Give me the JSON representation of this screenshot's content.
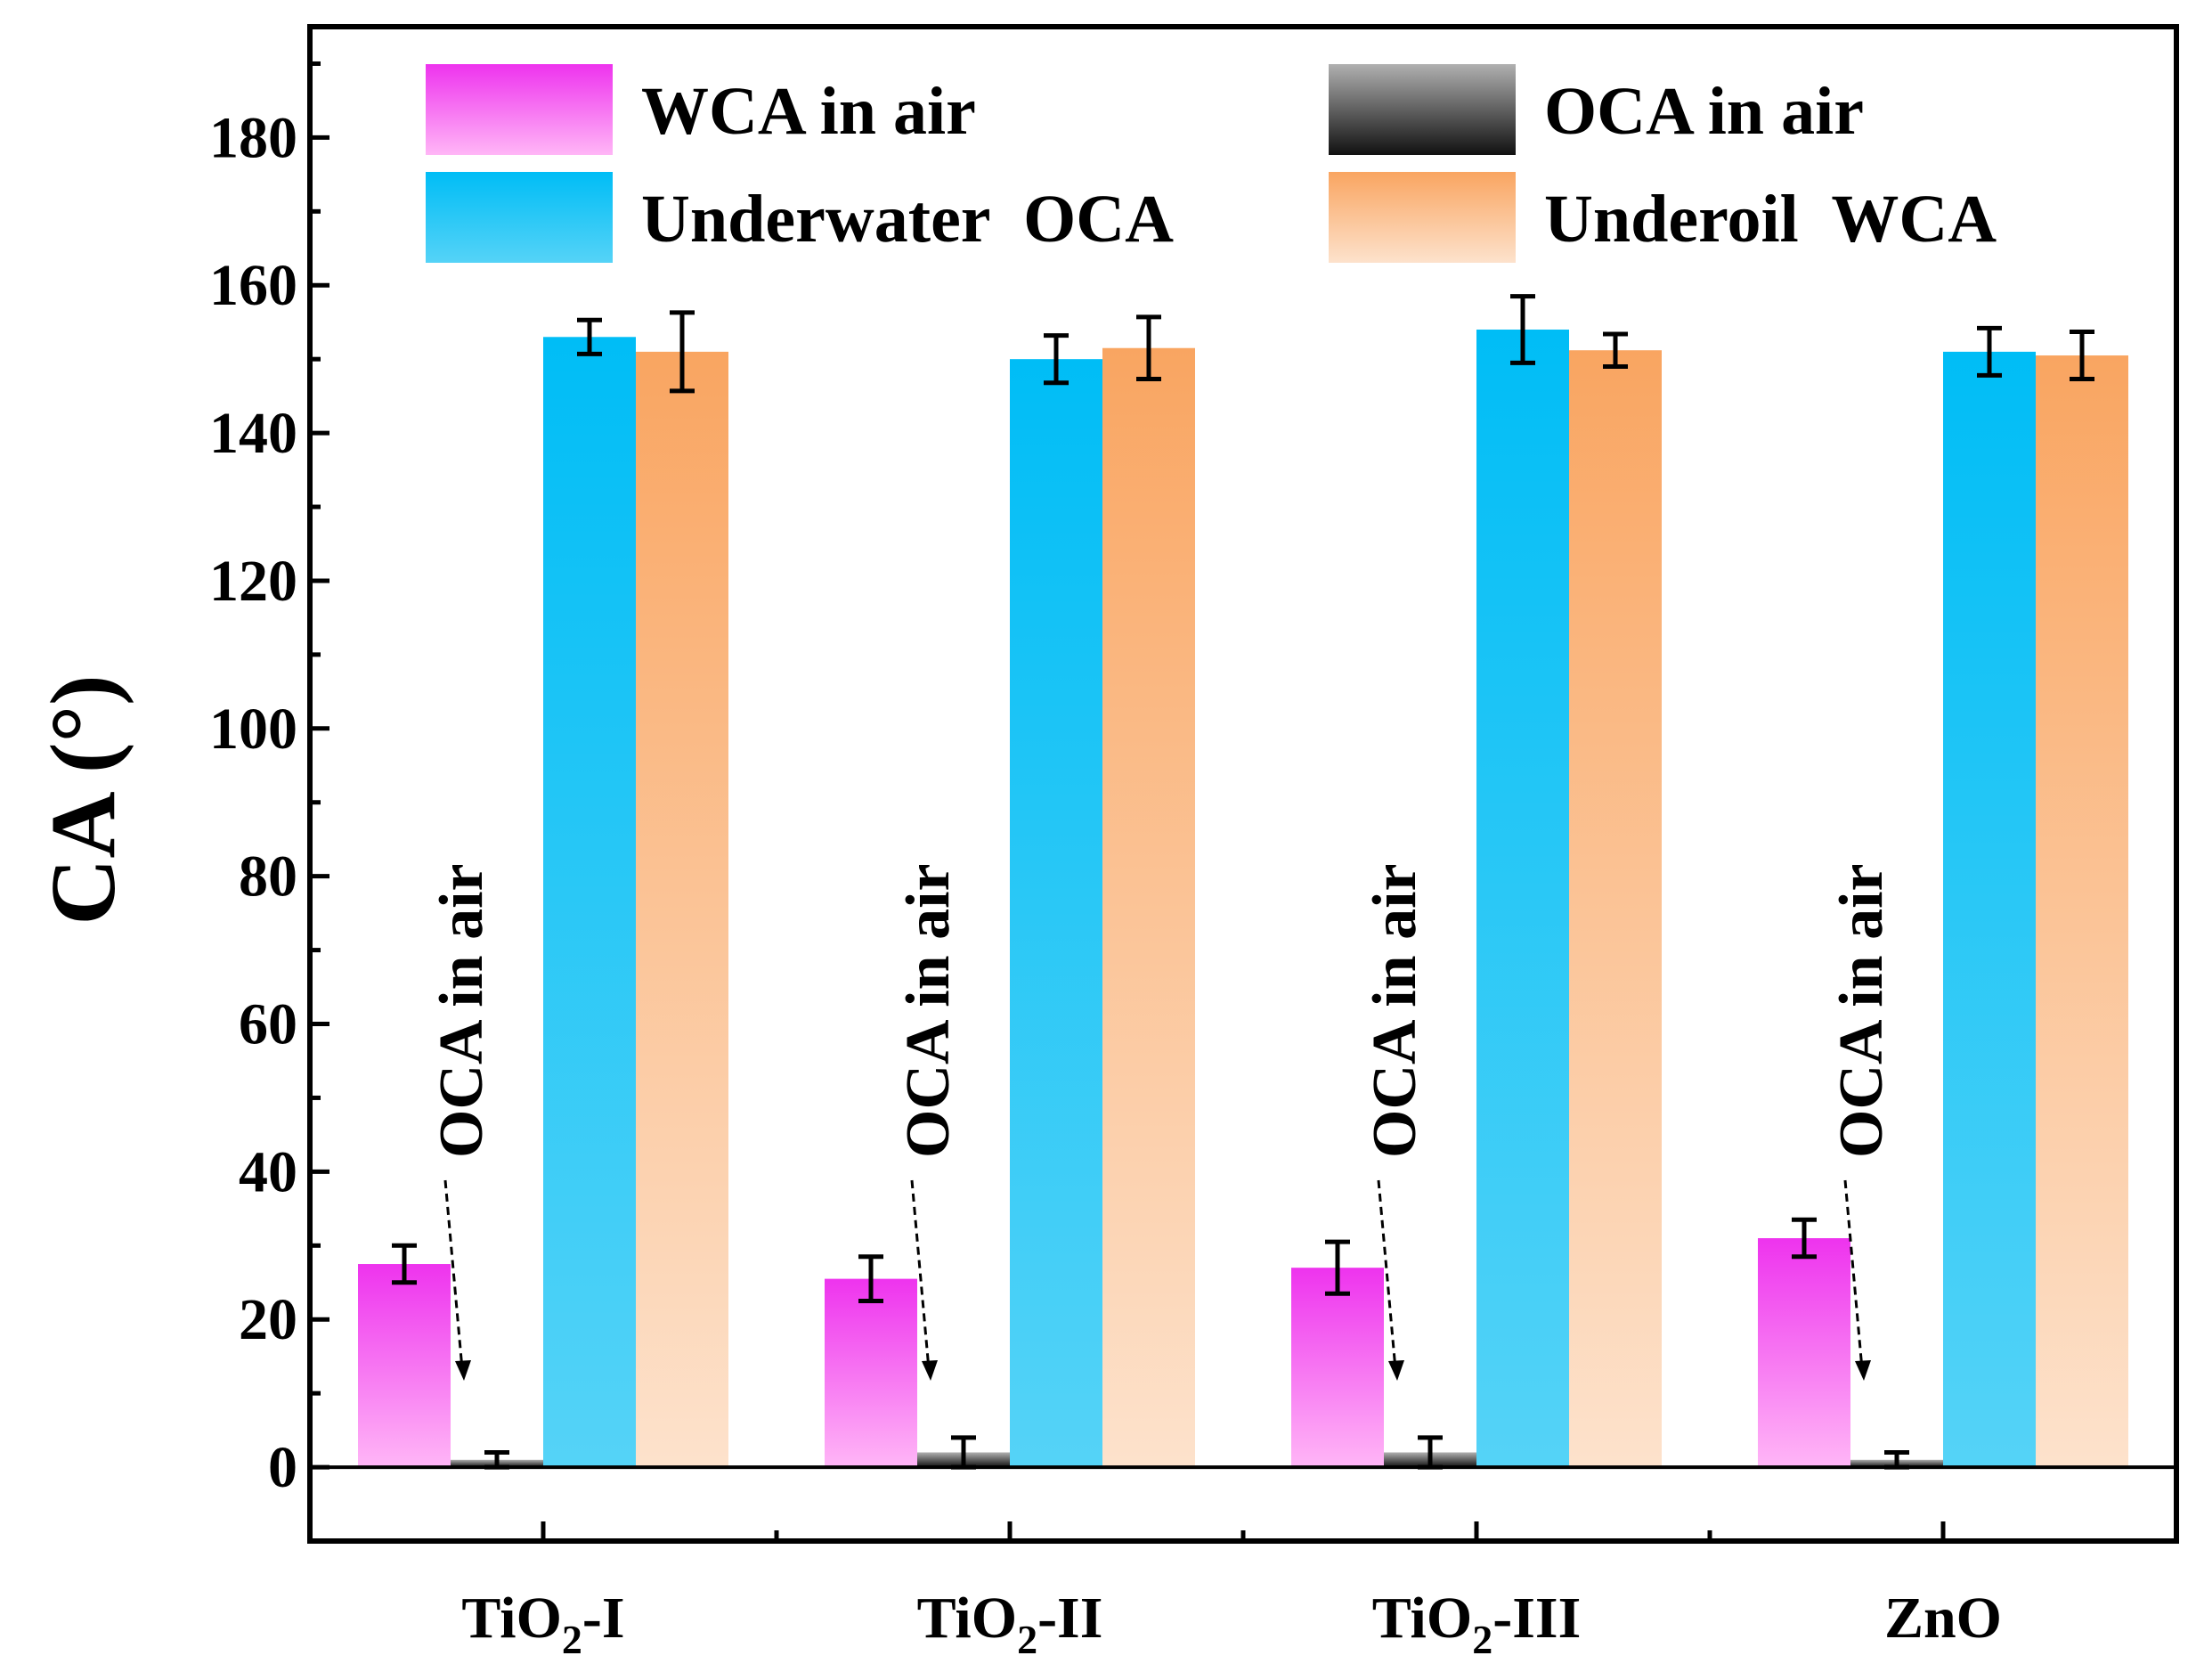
{
  "chart_data": {
    "type": "bar",
    "title": "",
    "xlabel": "",
    "ylabel": "CA (°)",
    "ylim": [
      -10,
      195
    ],
    "yticks": [
      0,
      20,
      40,
      60,
      80,
      100,
      120,
      140,
      160,
      180
    ],
    "categories": [
      {
        "label": "TiO2-I",
        "base": "TiO",
        "sub": "2",
        "suffix": "-I"
      },
      {
        "label": "TiO2-II",
        "base": "TiO",
        "sub": "2",
        "suffix": "-II"
      },
      {
        "label": "TiO2-III",
        "base": "TiO",
        "sub": "2",
        "suffix": "-III"
      },
      {
        "label": "ZnO",
        "base": "ZnO",
        "sub": "",
        "suffix": ""
      }
    ],
    "series": [
      {
        "name": "WCA in air",
        "values": [
          27.5,
          25.5,
          27,
          31
        ],
        "errors": [
          2.5,
          3,
          3.5,
          2.5
        ],
        "color_top": "#ee33ee",
        "color_bottom": "#ffb6f6"
      },
      {
        "name": "OCA in air",
        "values": [
          1,
          2,
          2,
          1
        ],
        "errors": [
          1,
          2,
          2,
          1
        ],
        "color_top": "#b0b0b0",
        "color_bottom": "#111111"
      },
      {
        "name": "Underwater  OCA",
        "values": [
          153,
          150,
          154,
          151
        ],
        "errors": [
          2.3,
          3.2,
          4.5,
          3.2
        ],
        "color_top": "#00bdf6",
        "color_bottom": "#55d3f7"
      },
      {
        "name": "Underoil  WCA",
        "values": [
          151,
          151.5,
          151.2,
          150.5
        ],
        "errors": [
          5.3,
          4.2,
          2.2,
          3.2
        ],
        "color_top": "#f9a561",
        "color_bottom": "#fde2cc"
      }
    ],
    "annotations": [
      {
        "text": "OCA in air",
        "category": 0
      },
      {
        "text": "OCA in air",
        "category": 1
      },
      {
        "text": "OCA in air",
        "category": 2
      },
      {
        "text": "OCA in air",
        "category": 3
      }
    ],
    "legend": {
      "position": "top",
      "columns": 2
    }
  }
}
